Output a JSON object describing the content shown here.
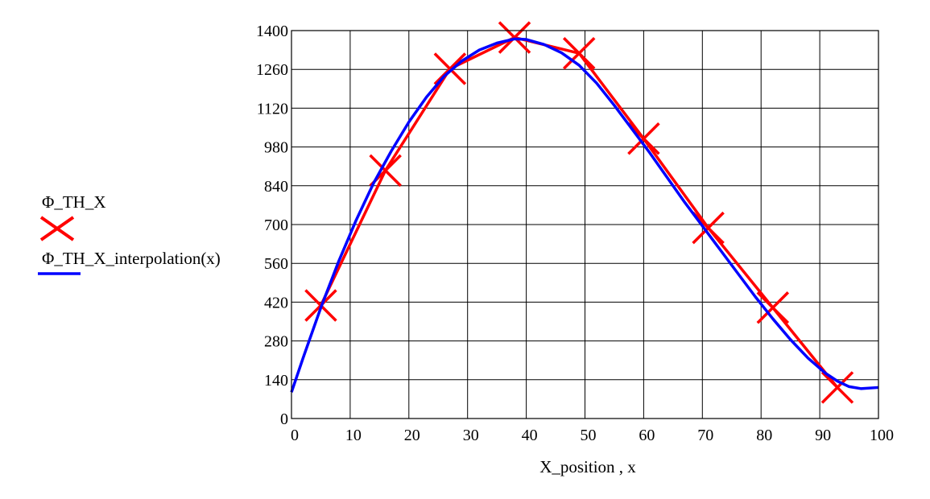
{
  "chart_data": {
    "type": "line",
    "xlabel": "X_position , x",
    "ylabel": "",
    "xlim": [
      0,
      100
    ],
    "ylim": [
      0,
      1400
    ],
    "x_ticks": [
      0,
      10,
      20,
      30,
      40,
      50,
      60,
      70,
      80,
      90,
      100
    ],
    "y_ticks": [
      0,
      140,
      280,
      420,
      560,
      700,
      840,
      980,
      1120,
      1260,
      1400
    ],
    "grid": true,
    "legend_position": "left",
    "series": [
      {
        "name": "Φ_TH_X",
        "style": "line-with-x-markers",
        "color": "#ff0000",
        "x": [
          5,
          16,
          27,
          38,
          49,
          60,
          71,
          82,
          93
        ],
        "y": [
          408,
          895,
          1262,
          1375,
          1318,
          1010,
          688,
          400,
          112
        ]
      },
      {
        "name": "Φ_TH_X_interpolation(x)",
        "style": "line",
        "color": "#0000ff",
        "x": [
          0,
          2,
          5,
          8,
          11,
          14,
          17,
          20,
          23,
          26,
          29,
          32,
          35,
          38,
          40,
          43,
          46,
          49,
          52,
          55,
          58,
          61,
          64,
          67,
          70,
          73,
          76,
          79,
          82,
          85,
          88,
          91,
          93,
          95,
          97,
          100
        ],
        "y": [
          95,
          220,
          400,
          565,
          715,
          850,
          965,
          1070,
          1160,
          1235,
          1290,
          1330,
          1355,
          1370,
          1368,
          1350,
          1320,
          1275,
          1210,
          1130,
          1045,
          960,
          870,
          780,
          695,
          610,
          525,
          440,
          360,
          285,
          218,
          163,
          135,
          115,
          108,
          112
        ]
      }
    ]
  },
  "colors": {
    "data_series": "#ff0000",
    "interpolation_series": "#0000ff",
    "grid": "#000000"
  }
}
